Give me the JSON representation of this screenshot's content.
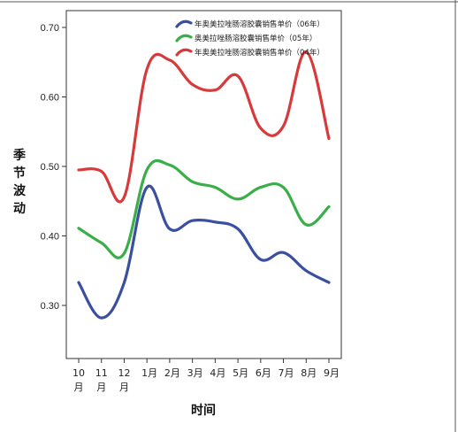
{
  "chart_data": {
    "type": "line",
    "categories": [
      "10月",
      "11月",
      "12月",
      "1月",
      "2月",
      "3月",
      "4月",
      "5月",
      "6月",
      "7月",
      "8月",
      "9月"
    ],
    "xlabel": "时间",
    "ylabel": "季节波动",
    "ylim": [
      0.25,
      0.72
    ],
    "yticks": [
      0.3,
      0.4,
      0.5,
      0.6,
      0.7
    ],
    "yticklabels": [
      "0.30",
      "0.40",
      "0.50",
      "0.60",
      "0.70"
    ],
    "grid": false,
    "legend": "top-right",
    "series": [
      {
        "name": "年奥美拉唑肠溶胶囊销售单价（06年）",
        "color": "#3a4fa0",
        "values": [
          0.333,
          0.282,
          0.333,
          0.47,
          0.41,
          0.422,
          0.42,
          0.41,
          0.366,
          0.376,
          0.35,
          0.333
        ]
      },
      {
        "name": "奥美拉唑肠溶胶囊销售单价（05年）",
        "color": "#3aae48",
        "values": [
          0.411,
          0.39,
          0.375,
          0.495,
          0.502,
          0.478,
          0.47,
          0.453,
          0.47,
          0.47,
          0.416,
          0.442
        ]
      },
      {
        "name": "年奥美拉唑肠溶胶囊销售单价（04年）",
        "color": "#d63a3a",
        "values": [
          0.495,
          0.493,
          0.456,
          0.64,
          0.653,
          0.618,
          0.61,
          0.63,
          0.555,
          0.558,
          0.665,
          0.54
        ]
      }
    ]
  }
}
